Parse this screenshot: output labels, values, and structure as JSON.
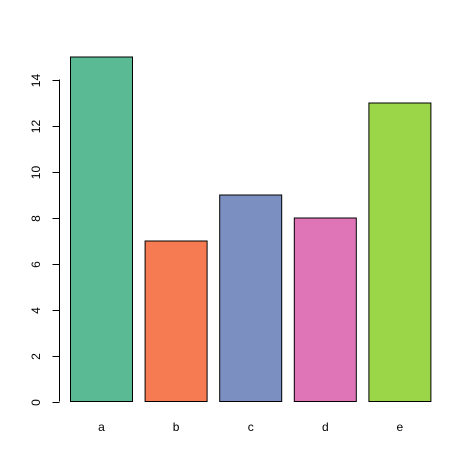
{
  "chart_data": {
    "type": "bar",
    "categories": [
      "a",
      "b",
      "c",
      "d",
      "e"
    ],
    "values": [
      15,
      7,
      9,
      8,
      13
    ],
    "colors": [
      "#5aba93",
      "#f77b52",
      "#7b8fc0",
      "#df75b6",
      "#9ad648"
    ],
    "title": "",
    "xlabel": "",
    "ylabel": "",
    "ylim": [
      0,
      15
    ],
    "yticks": [
      0,
      2,
      4,
      6,
      8,
      10,
      12,
      14
    ],
    "grid": false,
    "legend": "none"
  }
}
